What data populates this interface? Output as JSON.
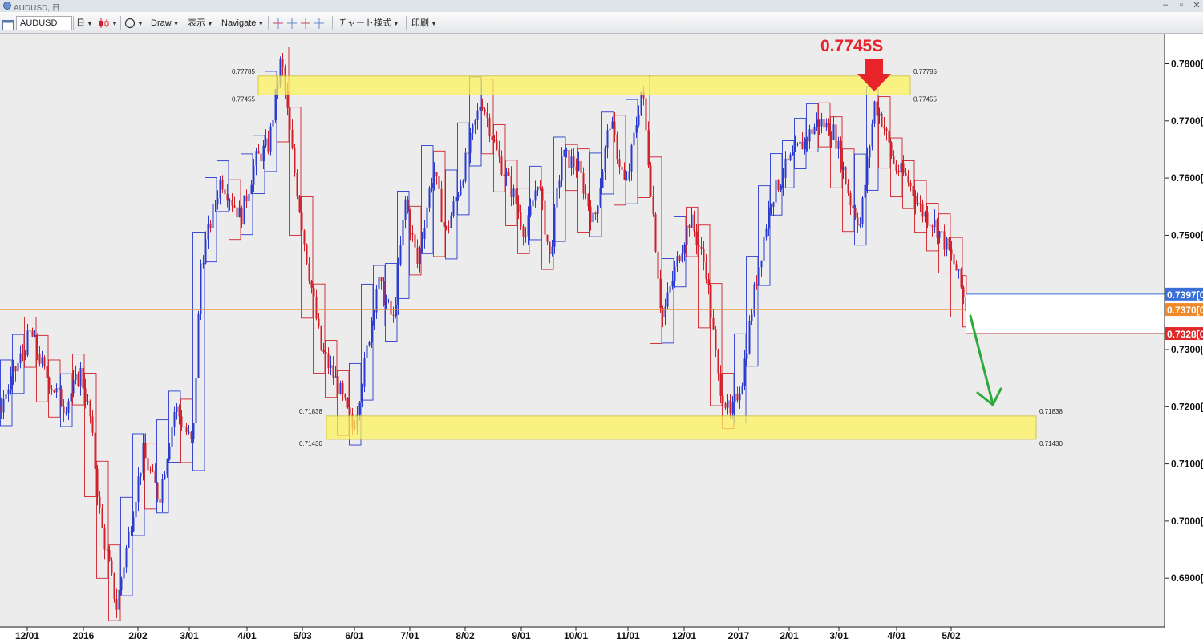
{
  "window": {
    "title": "AUDUSD, 日"
  },
  "toolbar": {
    "symbol": "AUDUSD",
    "period": "日",
    "draw": "Draw",
    "display": "表示",
    "navigate": "Navigate",
    "chart_style": "チャート様式",
    "print": "印刷"
  },
  "chart": {
    "annotation": "0.7745S",
    "y_labels": [
      "0.7800[0",
      "0.7700[0",
      "0.7600[0",
      "0.7500[0",
      "0.7300[0",
      "0.7200[0",
      "0.7100[0",
      "0.7000[0",
      "0.6900[0"
    ],
    "x_labels": [
      "12/01",
      "2016",
      "2/02",
      "3/01",
      "4/01",
      "5/03",
      "6/01",
      "7/01",
      "8/02",
      "9/01",
      "10/01",
      "11/01",
      "12/01",
      "2017",
      "2/01",
      "3/01",
      "4/01",
      "5/02"
    ],
    "price_tags": [
      {
        "text": "0.7397[0",
        "color": "#3a6fd8"
      },
      {
        "text": "0.7370[0",
        "color": "#f0892a"
      },
      {
        "text": "0.7328[0",
        "color": "#e02a2a"
      }
    ],
    "upper_zone": {
      "top_label": "0.77785",
      "bottom_label": "0.77455"
    },
    "lower_zone": {
      "top_label": "0.71838",
      "bottom_label": "0.71430"
    },
    "colors": {
      "bull": "#2b3bd0",
      "bear": "#d0202a",
      "zone": "#fff25a",
      "arrow_down": "#e8232a",
      "arrow_trend": "#2fa83a",
      "current_line": "#f0892a"
    }
  },
  "chart_data": {
    "type": "candlestick",
    "symbol": "AUDUSD",
    "timeframe": "daily",
    "y_range": [
      0.682,
      0.783
    ],
    "current_price": 0.737,
    "resistance_zone": [
      0.77455,
      0.77785
    ],
    "support_zone": [
      0.7143,
      0.71838
    ],
    "annotation": "0.7745S",
    "approx_weekly_closes": [
      {
        "x": "12/01",
        "y": 0.728
      },
      {
        "x": "2016",
        "y": 0.715
      },
      {
        "x": "2/02",
        "y": 0.708
      },
      {
        "x": "3/01",
        "y": 0.73
      },
      {
        "x": "4/01",
        "y": 0.76
      },
      {
        "x": "5/03",
        "y": 0.75
      },
      {
        "x": "6/01",
        "y": 0.723
      },
      {
        "x": "7/01",
        "y": 0.75
      },
      {
        "x": "8/02",
        "y": 0.765
      },
      {
        "x": "9/01",
        "y": 0.756
      },
      {
        "x": "10/01",
        "y": 0.762
      },
      {
        "x": "11/01",
        "y": 0.768
      },
      {
        "x": "12/01",
        "y": 0.742
      },
      {
        "x": "2017",
        "y": 0.722
      },
      {
        "x": "2/01",
        "y": 0.762
      },
      {
        "x": "3/01",
        "y": 0.762
      },
      {
        "x": "4/01",
        "y": 0.756
      },
      {
        "x": "5/02",
        "y": 0.74
      }
    ]
  }
}
